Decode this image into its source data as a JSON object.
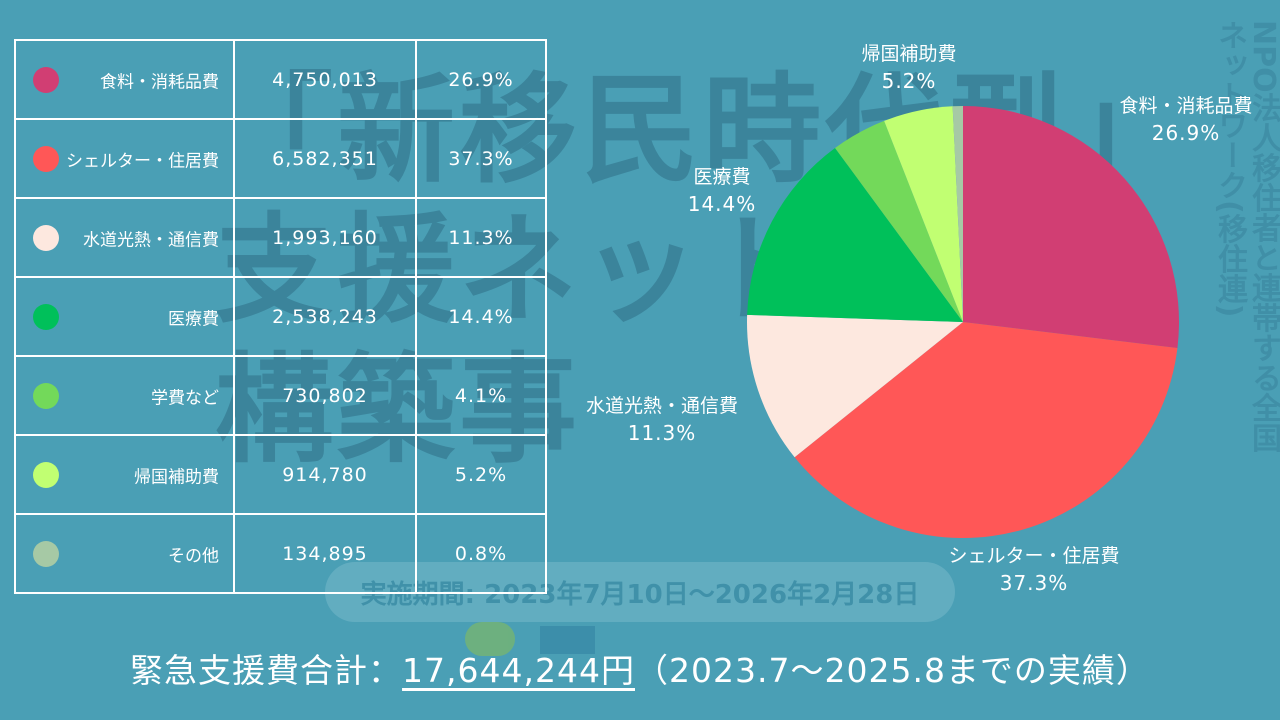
{
  "background": {
    "title_line1": "「新移民時代型」",
    "title_line2": "支援ネット",
    "title_line3": "構築事",
    "period": "実施期間: 2023年7月10日～2026年2月28日",
    "vertical_text": "NPO法人移住者と連帯する全国ネットワーク(移住連)"
  },
  "total": {
    "label": "緊急支援費合計：",
    "value": "17,644,244円",
    "suffix": "（2023.7～2025.8までの実績）"
  },
  "chart_data": {
    "type": "pie",
    "title": "",
    "categories": [
      "食料・消耗品費",
      "シェルター・住居費",
      "水道光熱・通信費",
      "医療費",
      "学費など",
      "帰国補助費",
      "その他"
    ],
    "values": [
      4750013,
      6582351,
      1993160,
      2538243,
      730802,
      914780,
      134895
    ],
    "percent_labels": [
      "26.9%",
      "37.3%",
      "11.3%",
      "14.4%",
      "4.1%",
      "5.2%",
      "0.8%"
    ],
    "amount_labels": [
      "4,750,013",
      "6,582,351",
      "1,993,160",
      "2,538,243",
      "730,802",
      "914,780",
      "134,895"
    ],
    "colors": [
      "#d13e73",
      "#ff5757",
      "#fde8df",
      "#00c05a",
      "#73d95a",
      "#c1ff72",
      "#a6c9a5"
    ],
    "labeled_slices": [
      true,
      true,
      true,
      true,
      false,
      true,
      false
    ],
    "start_angle_deg": 0,
    "direction": "clockwise"
  }
}
